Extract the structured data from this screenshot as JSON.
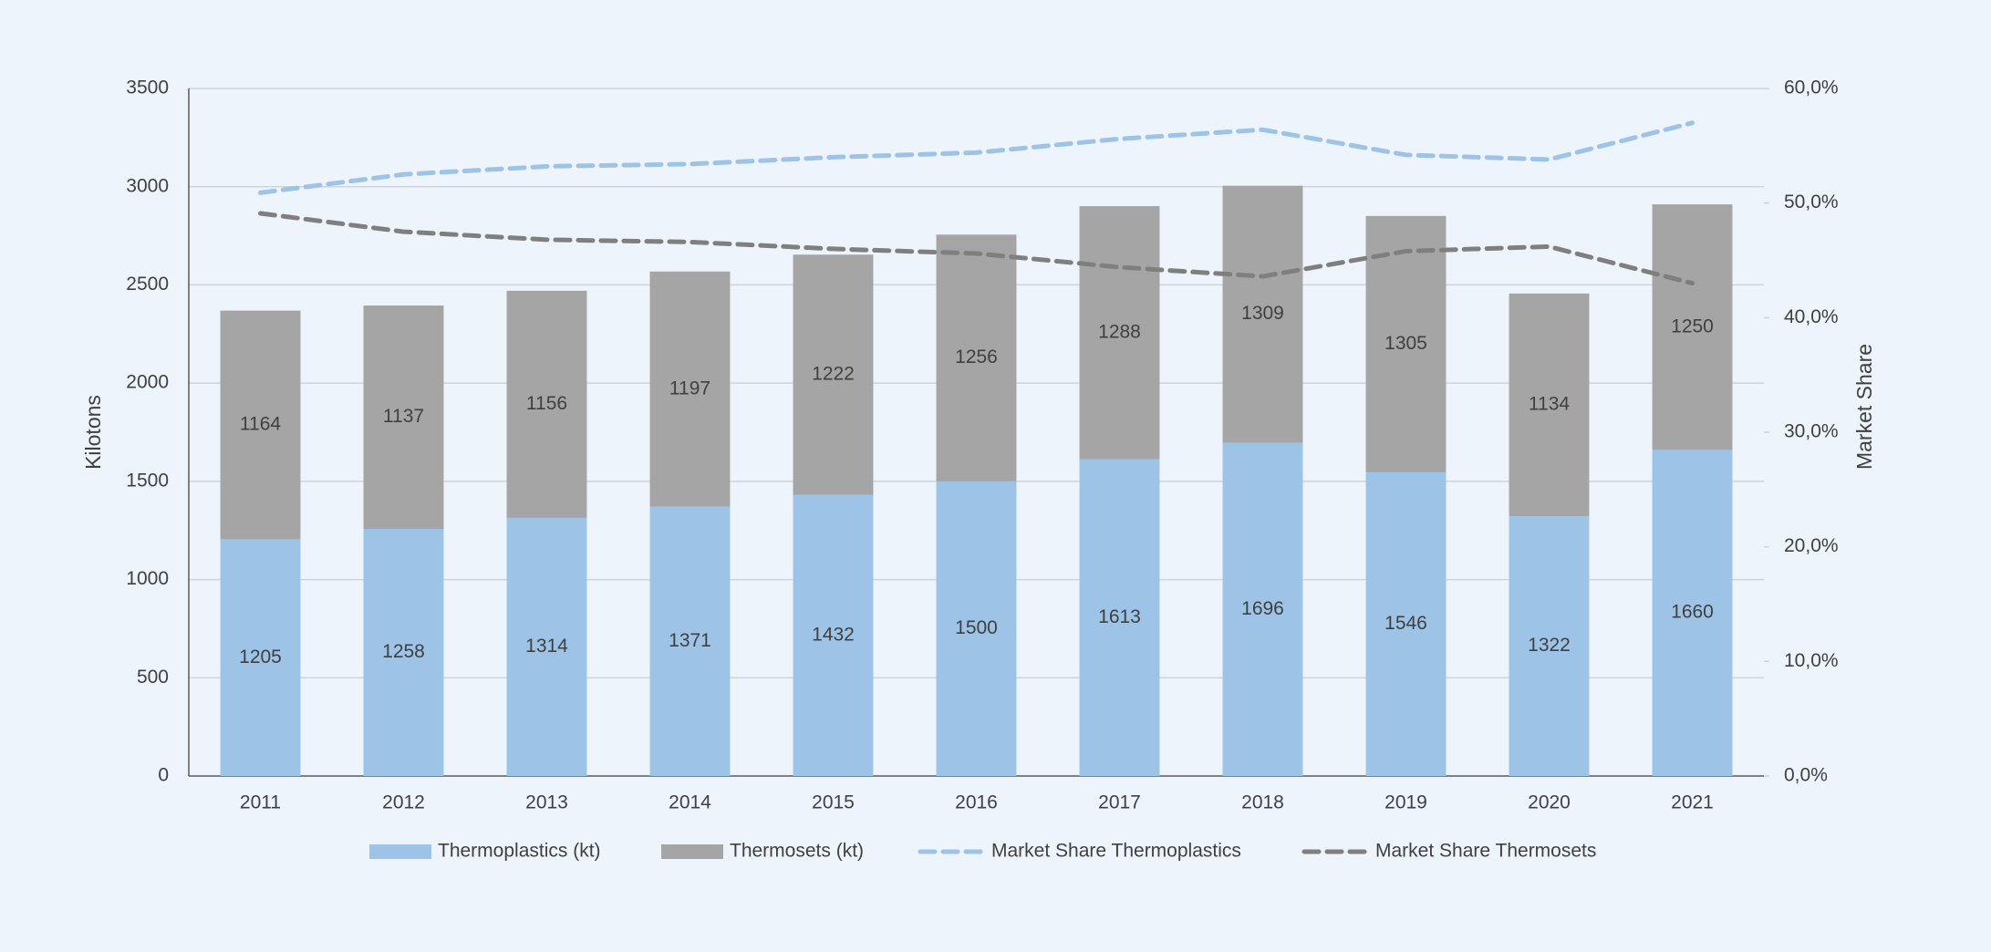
{
  "chart_data": {
    "type": "bar",
    "stacked": true,
    "categories": [
      "2011",
      "2012",
      "2013",
      "2014",
      "2015",
      "2016",
      "2017",
      "2018",
      "2019",
      "2020",
      "2021"
    ],
    "ylabel": "Kilotons",
    "y2label": "Market Share",
    "ylim": [
      0,
      3500
    ],
    "yticks": [
      0,
      500,
      1000,
      1500,
      2000,
      2500,
      3000,
      3500
    ],
    "y2lim": [
      0,
      60
    ],
    "y2ticks": [
      {
        "value": 0,
        "label": "0,0%"
      },
      {
        "value": 10,
        "label": "10,0%"
      },
      {
        "value": 20,
        "label": "20,0%"
      },
      {
        "value": 30,
        "label": "30,0%"
      },
      {
        "value": 40,
        "label": "40,0%"
      },
      {
        "value": 50,
        "label": "50,0%"
      },
      {
        "value": 60,
        "label": "60,0%"
      }
    ],
    "grid": true,
    "legend": "bottom",
    "series": [
      {
        "name": "Thermoplastics (kt)",
        "color": "#9dc3e6",
        "values": [
          1205,
          1258,
          1314,
          1371,
          1432,
          1500,
          1613,
          1696,
          1546,
          1322,
          1660
        ]
      },
      {
        "name": "Thermosets (kt)",
        "color": "#a5a5a5",
        "values": [
          1164,
          1137,
          1156,
          1197,
          1222,
          1256,
          1288,
          1309,
          1305,
          1134,
          1250
        ]
      },
      {
        "name": "Market Share Thermoplastics",
        "color": "#9dc3e6",
        "type": "line",
        "dashed": true,
        "axis": "y2",
        "values": [
          50.9,
          52.5,
          53.2,
          53.4,
          54.0,
          54.4,
          55.6,
          56.4,
          54.2,
          53.8,
          57.0
        ]
      },
      {
        "name": "Market Share Thermosets",
        "color": "#7f7f7f",
        "type": "line",
        "dashed": true,
        "axis": "y2",
        "values": [
          49.1,
          47.5,
          46.8,
          46.6,
          46.0,
          45.6,
          44.4,
          43.6,
          45.8,
          46.2,
          43.0
        ]
      }
    ]
  }
}
